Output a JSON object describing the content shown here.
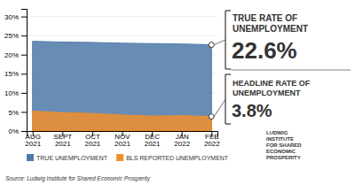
{
  "chart_data": {
    "type": "area",
    "categories": [
      "AUG\n2021",
      "SEPT\n2021",
      "OCT\n2021",
      "NOV\n2021",
      "DEC\n2021",
      "JAN\n2022",
      "FEB\n2022"
    ],
    "series": [
      {
        "name": "TRUE UNEMPLOYMENT",
        "values": [
          23.5,
          23.3,
          23.2,
          23.0,
          22.9,
          22.8,
          22.6
        ]
      },
      {
        "name": "BLS REPORTED UNEMPLOYMENT",
        "values": [
          5.2,
          4.8,
          4.6,
          4.2,
          3.9,
          4.0,
          3.8
        ]
      }
    ],
    "ylim": [
      0,
      32
    ],
    "yticks": [
      {
        "value": 0,
        "label": "0%"
      },
      {
        "value": 5,
        "label": "5%"
      },
      {
        "value": 10,
        "label": "10%"
      },
      {
        "value": 15,
        "label": "15%"
      },
      {
        "value": 20,
        "label": "20%"
      },
      {
        "value": 25,
        "label": "25%"
      },
      {
        "value": 30,
        "label": "30%"
      }
    ],
    "grid": true,
    "legend": "bottom",
    "annotations": [
      "TRUE RATE OF",
      "UNEMPLOYMENT",
      "22.6%",
      "HEADLINE RATE OF",
      "UNEMPLOYMENT",
      "3.8%",
      "Source: Ludwig Institute for Shared Economic Prosperity",
      "LUDWIG\nINSTITUTE\nFOR SHARED\nECONOMIC\nPROSPERITY"
    ]
  }
}
